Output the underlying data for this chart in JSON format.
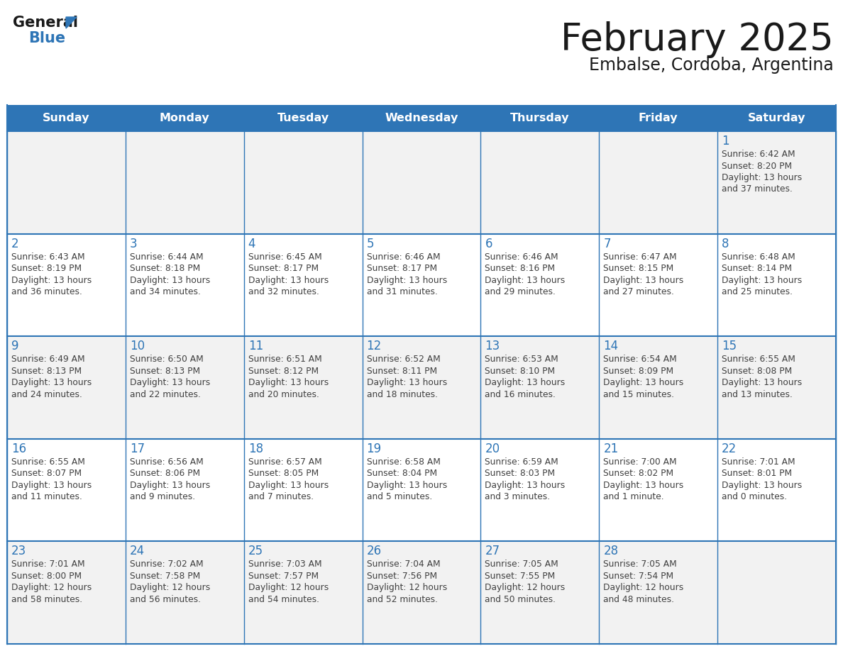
{
  "title": "February 2025",
  "subtitle": "Embalse, Cordoba, Argentina",
  "header_bg": "#2E75B6",
  "header_text_color": "#FFFFFF",
  "day_names": [
    "Sunday",
    "Monday",
    "Tuesday",
    "Wednesday",
    "Thursday",
    "Friday",
    "Saturday"
  ],
  "cell_bg_white": "#FFFFFF",
  "cell_bg_gray": "#F2F2F2",
  "cell_border": "#2E75B6",
  "day_number_color": "#2E75B6",
  "info_text_color": "#404040",
  "logo_general_color": "#1a1a1a",
  "logo_blue_color": "#2E75B6",
  "title_color": "#1a1a1a",
  "subtitle_color": "#1a1a1a",
  "calendar_data": [
    [
      null,
      null,
      null,
      null,
      null,
      null,
      {
        "day": 1,
        "sunrise": "6:42 AM",
        "sunset": "8:20 PM",
        "daylight_hours": 13,
        "daylight_minutes": 37
      }
    ],
    [
      {
        "day": 2,
        "sunrise": "6:43 AM",
        "sunset": "8:19 PM",
        "daylight_hours": 13,
        "daylight_minutes": 36
      },
      {
        "day": 3,
        "sunrise": "6:44 AM",
        "sunset": "8:18 PM",
        "daylight_hours": 13,
        "daylight_minutes": 34
      },
      {
        "day": 4,
        "sunrise": "6:45 AM",
        "sunset": "8:17 PM",
        "daylight_hours": 13,
        "daylight_minutes": 32
      },
      {
        "day": 5,
        "sunrise": "6:46 AM",
        "sunset": "8:17 PM",
        "daylight_hours": 13,
        "daylight_minutes": 31
      },
      {
        "day": 6,
        "sunrise": "6:46 AM",
        "sunset": "8:16 PM",
        "daylight_hours": 13,
        "daylight_minutes": 29
      },
      {
        "day": 7,
        "sunrise": "6:47 AM",
        "sunset": "8:15 PM",
        "daylight_hours": 13,
        "daylight_minutes": 27
      },
      {
        "day": 8,
        "sunrise": "6:48 AM",
        "sunset": "8:14 PM",
        "daylight_hours": 13,
        "daylight_minutes": 25
      }
    ],
    [
      {
        "day": 9,
        "sunrise": "6:49 AM",
        "sunset": "8:13 PM",
        "daylight_hours": 13,
        "daylight_minutes": 24
      },
      {
        "day": 10,
        "sunrise": "6:50 AM",
        "sunset": "8:13 PM",
        "daylight_hours": 13,
        "daylight_minutes": 22
      },
      {
        "day": 11,
        "sunrise": "6:51 AM",
        "sunset": "8:12 PM",
        "daylight_hours": 13,
        "daylight_minutes": 20
      },
      {
        "day": 12,
        "sunrise": "6:52 AM",
        "sunset": "8:11 PM",
        "daylight_hours": 13,
        "daylight_minutes": 18
      },
      {
        "day": 13,
        "sunrise": "6:53 AM",
        "sunset": "8:10 PM",
        "daylight_hours": 13,
        "daylight_minutes": 16
      },
      {
        "day": 14,
        "sunrise": "6:54 AM",
        "sunset": "8:09 PM",
        "daylight_hours": 13,
        "daylight_minutes": 15
      },
      {
        "day": 15,
        "sunrise": "6:55 AM",
        "sunset": "8:08 PM",
        "daylight_hours": 13,
        "daylight_minutes": 13
      }
    ],
    [
      {
        "day": 16,
        "sunrise": "6:55 AM",
        "sunset": "8:07 PM",
        "daylight_hours": 13,
        "daylight_minutes": 11
      },
      {
        "day": 17,
        "sunrise": "6:56 AM",
        "sunset": "8:06 PM",
        "daylight_hours": 13,
        "daylight_minutes": 9
      },
      {
        "day": 18,
        "sunrise": "6:57 AM",
        "sunset": "8:05 PM",
        "daylight_hours": 13,
        "daylight_minutes": 7
      },
      {
        "day": 19,
        "sunrise": "6:58 AM",
        "sunset": "8:04 PM",
        "daylight_hours": 13,
        "daylight_minutes": 5
      },
      {
        "day": 20,
        "sunrise": "6:59 AM",
        "sunset": "8:03 PM",
        "daylight_hours": 13,
        "daylight_minutes": 3
      },
      {
        "day": 21,
        "sunrise": "7:00 AM",
        "sunset": "8:02 PM",
        "daylight_hours": 13,
        "daylight_minutes": 1
      },
      {
        "day": 22,
        "sunrise": "7:01 AM",
        "sunset": "8:01 PM",
        "daylight_hours": 13,
        "daylight_minutes": 0
      }
    ],
    [
      {
        "day": 23,
        "sunrise": "7:01 AM",
        "sunset": "8:00 PM",
        "daylight_hours": 12,
        "daylight_minutes": 58
      },
      {
        "day": 24,
        "sunrise": "7:02 AM",
        "sunset": "7:58 PM",
        "daylight_hours": 12,
        "daylight_minutes": 56
      },
      {
        "day": 25,
        "sunrise": "7:03 AM",
        "sunset": "7:57 PM",
        "daylight_hours": 12,
        "daylight_minutes": 54
      },
      {
        "day": 26,
        "sunrise": "7:04 AM",
        "sunset": "7:56 PM",
        "daylight_hours": 12,
        "daylight_minutes": 52
      },
      {
        "day": 27,
        "sunrise": "7:05 AM",
        "sunset": "7:55 PM",
        "daylight_hours": 12,
        "daylight_minutes": 50
      },
      {
        "day": 28,
        "sunrise": "7:05 AM",
        "sunset": "7:54 PM",
        "daylight_hours": 12,
        "daylight_minutes": 48
      },
      null
    ]
  ],
  "row_bg_colors": [
    "#F2F2F2",
    "#FFFFFF",
    "#F2F2F2",
    "#FFFFFF",
    "#F2F2F2"
  ]
}
